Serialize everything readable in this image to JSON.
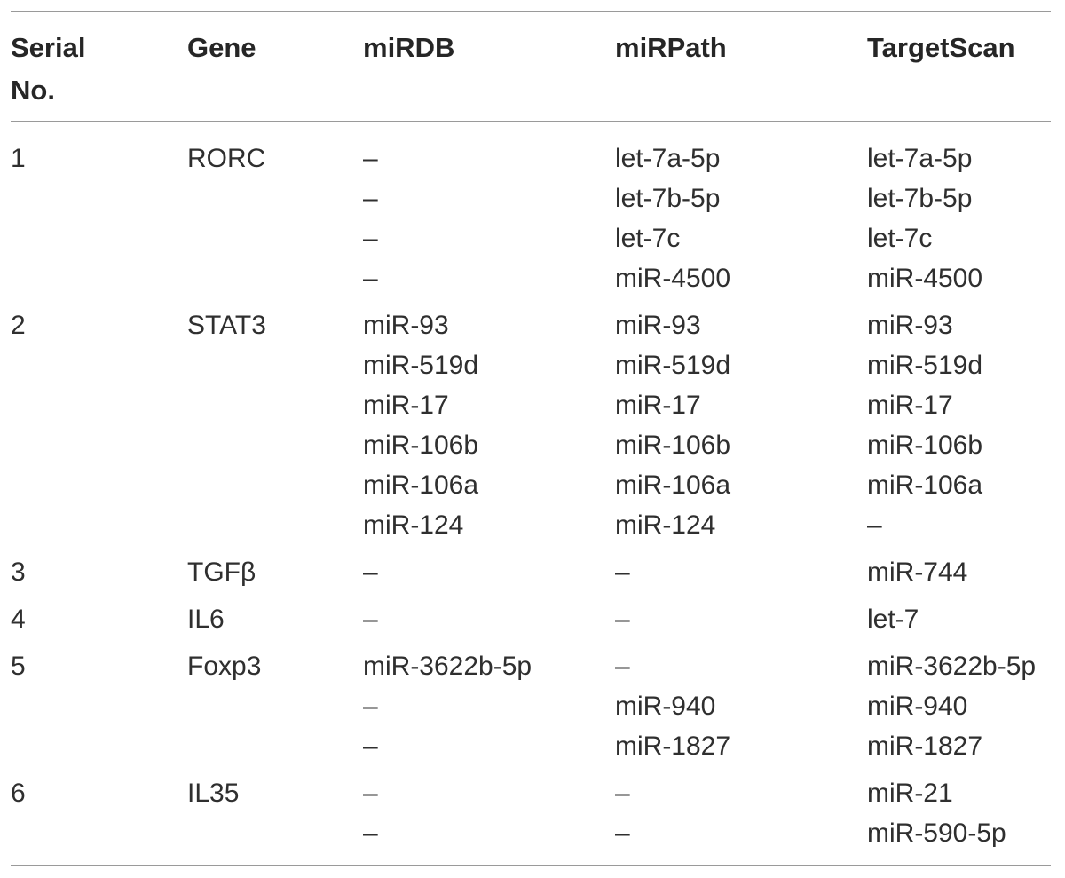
{
  "table": {
    "headers": [
      "Serial\nNo.",
      "Gene",
      "miRDB",
      "miRPath",
      "TargetScan"
    ],
    "rows": [
      {
        "serial": "1",
        "gene": "RORC",
        "mirdb": [
          "–",
          "–",
          "–",
          "–"
        ],
        "mirpath": [
          "let-7a-5p",
          "let-7b-5p",
          "let-7c",
          "miR-4500"
        ],
        "targetscan": [
          "let-7a-5p",
          "let-7b-5p",
          "let-7c",
          "miR-4500"
        ]
      },
      {
        "serial": "2",
        "gene": "STAT3",
        "mirdb": [
          "miR-93",
          "miR-519d",
          "miR-17",
          "miR-106b",
          "miR-106a",
          "miR-124"
        ],
        "mirpath": [
          "miR-93",
          "miR-519d",
          "miR-17",
          "miR-106b",
          "miR-106a",
          "miR-124"
        ],
        "targetscan": [
          "miR-93",
          "miR-519d",
          "miR-17",
          "miR-106b",
          "miR-106a",
          "–"
        ]
      },
      {
        "serial": "3",
        "gene": "TGFβ",
        "mirdb": [
          "–"
        ],
        "mirpath": [
          "–"
        ],
        "targetscan": [
          "miR-744"
        ]
      },
      {
        "serial": "4",
        "gene": "IL6",
        "mirdb": [
          "–"
        ],
        "mirpath": [
          "–"
        ],
        "targetscan": [
          "let-7"
        ]
      },
      {
        "serial": "5",
        "gene": "Foxp3",
        "mirdb": [
          "miR-3622b-5p",
          "–",
          "–"
        ],
        "mirpath": [
          "–",
          "miR-940",
          "miR-1827"
        ],
        "targetscan": [
          "miR-3622b-5p",
          "miR-940",
          "miR-1827"
        ]
      },
      {
        "serial": "6",
        "gene": "IL35",
        "mirdb": [
          "–",
          "–"
        ],
        "mirpath": [
          "–",
          "–"
        ],
        "targetscan": [
          "miR-21",
          "miR-590-5p"
        ]
      }
    ]
  }
}
